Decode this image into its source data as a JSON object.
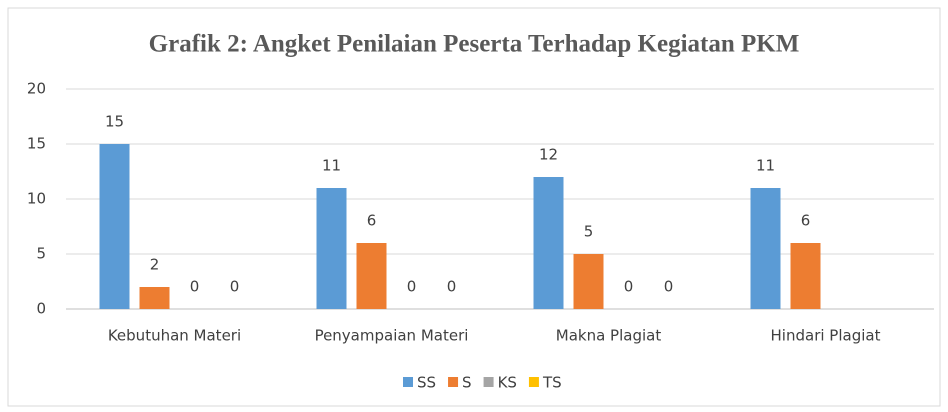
{
  "chart_data": {
    "type": "bar",
    "title": "Grafik 2: Angket Penilaian Peserta Terhadap Kegiatan PKM",
    "categories": [
      "Kebutuhan Materi",
      "Penyampaian Materi",
      "Makna Plagiat",
      "Hindari Plagiat"
    ],
    "series": [
      {
        "name": "SS",
        "color": "#5b9bd5",
        "values": [
          15,
          11,
          12,
          11
        ]
      },
      {
        "name": "S",
        "color": "#ed7d31",
        "values": [
          2,
          6,
          5,
          6
        ]
      },
      {
        "name": "KS",
        "color": "#a5a5a5",
        "values": [
          0,
          0,
          0,
          null
        ]
      },
      {
        "name": "TS",
        "color": "#ffc000",
        "values": [
          0,
          0,
          0,
          null
        ]
      }
    ],
    "ylim": [
      0,
      20
    ],
    "yticks": [
      0,
      5,
      10,
      15,
      20
    ],
    "grid": true,
    "legend": "bottom"
  }
}
